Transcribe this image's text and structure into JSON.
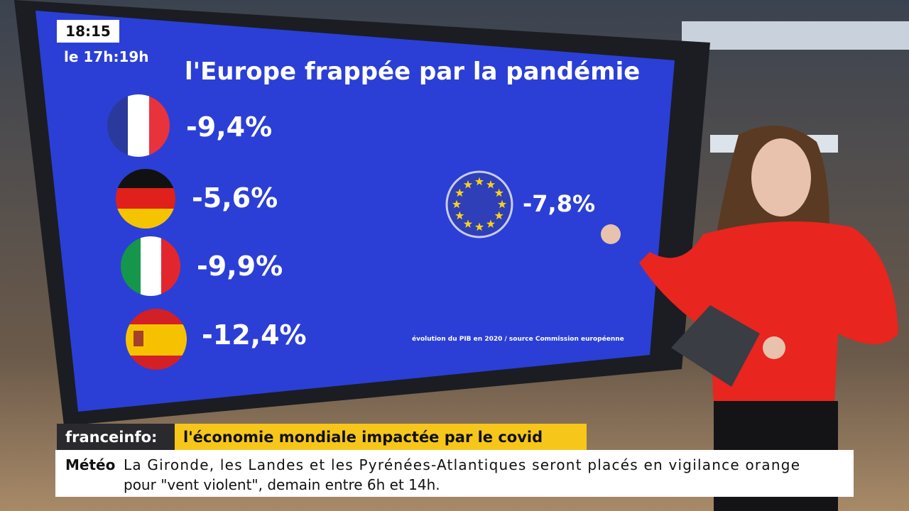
{
  "clock": {
    "time": "18:15",
    "program": "le 17h:19h"
  },
  "screen": {
    "title": "l'Europe frappée par la pandémie",
    "countries": [
      {
        "value": "-9,4%"
      },
      {
        "value": "-5,6%"
      },
      {
        "value": "-9,9%"
      },
      {
        "value": "-12,4%"
      }
    ],
    "eu": {
      "value": "-7,8%"
    },
    "source": "évolution du PIB en 2020 / source Commission européenne"
  },
  "banner": {
    "brand": "franceinfo:",
    "headline": "l'économie mondiale impactée par le covid"
  },
  "ticker": {
    "label": "Météo",
    "lines": [
      "La Gironde, les Landes et les Pyrénées-Atlantiques seront placés en vigilance orange",
      "pour \"vent violent\", demain entre 6h et 14h."
    ]
  }
}
